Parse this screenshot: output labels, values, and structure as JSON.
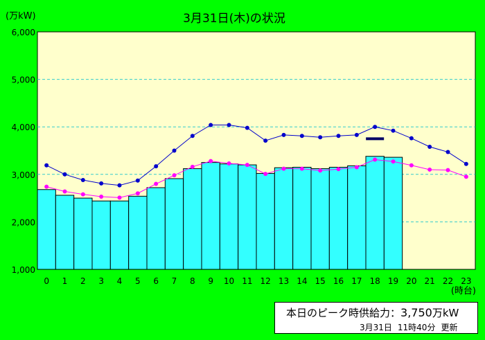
{
  "chart_data": {
    "type": "bar",
    "title": "3月31日(木)の状況",
    "unit_label": "(万kW)",
    "x_unit_label": "(時台)",
    "categories": [
      "0",
      "1",
      "2",
      "3",
      "4",
      "5",
      "6",
      "7",
      "8",
      "9",
      "10",
      "11",
      "12",
      "13",
      "14",
      "15",
      "16",
      "17",
      "18",
      "19",
      "20",
      "21",
      "22",
      "23"
    ],
    "ylim": [
      1000,
      6000
    ],
    "yticks": [
      "1,000",
      "2,000",
      "3,000",
      "4,000",
      "5,000",
      "6,000"
    ],
    "ytick_values": [
      1000,
      2000,
      3000,
      4000,
      5000,
      6000
    ],
    "grid": true,
    "series": [
      {
        "kind": "bar",
        "color": "#33ffff",
        "values": [
          2680,
          2560,
          2500,
          2440,
          2440,
          2540,
          2720,
          2910,
          3120,
          3250,
          3220,
          3200,
          3020,
          3140,
          3150,
          3120,
          3150,
          3180,
          3380,
          3360,
          null,
          null,
          null,
          null
        ]
      },
      {
        "kind": "line",
        "color": "#0000cc",
        "values": [
          3190,
          3000,
          2880,
          2810,
          2770,
          2870,
          3170,
          3500,
          3810,
          4040,
          4040,
          3980,
          3710,
          3830,
          3810,
          3780,
          3810,
          3830,
          4000,
          3920,
          3760,
          3580,
          3470,
          3220
        ]
      },
      {
        "kind": "line",
        "color": "#ff00ff",
        "values": [
          2740,
          2640,
          2580,
          2530,
          2510,
          2600,
          2800,
          2980,
          3160,
          3280,
          3230,
          3200,
          3010,
          3120,
          3120,
          3080,
          3110,
          3150,
          3310,
          3270,
          3190,
          3100,
          3090,
          2950
        ]
      }
    ],
    "peak_marker": {
      "x": "18",
      "value": 3750,
      "color": "#000066"
    }
  },
  "info": {
    "peak_label": "本日のピーク時供給力：",
    "peak_value": "3,750",
    "peak_unit": "万kW",
    "update_date": "3月31日",
    "update_time": "11時40分",
    "update_label": "更新"
  },
  "colors": {
    "background": "#00ff00",
    "plot_area": "#ffffcc",
    "grid": "#33cccc"
  }
}
